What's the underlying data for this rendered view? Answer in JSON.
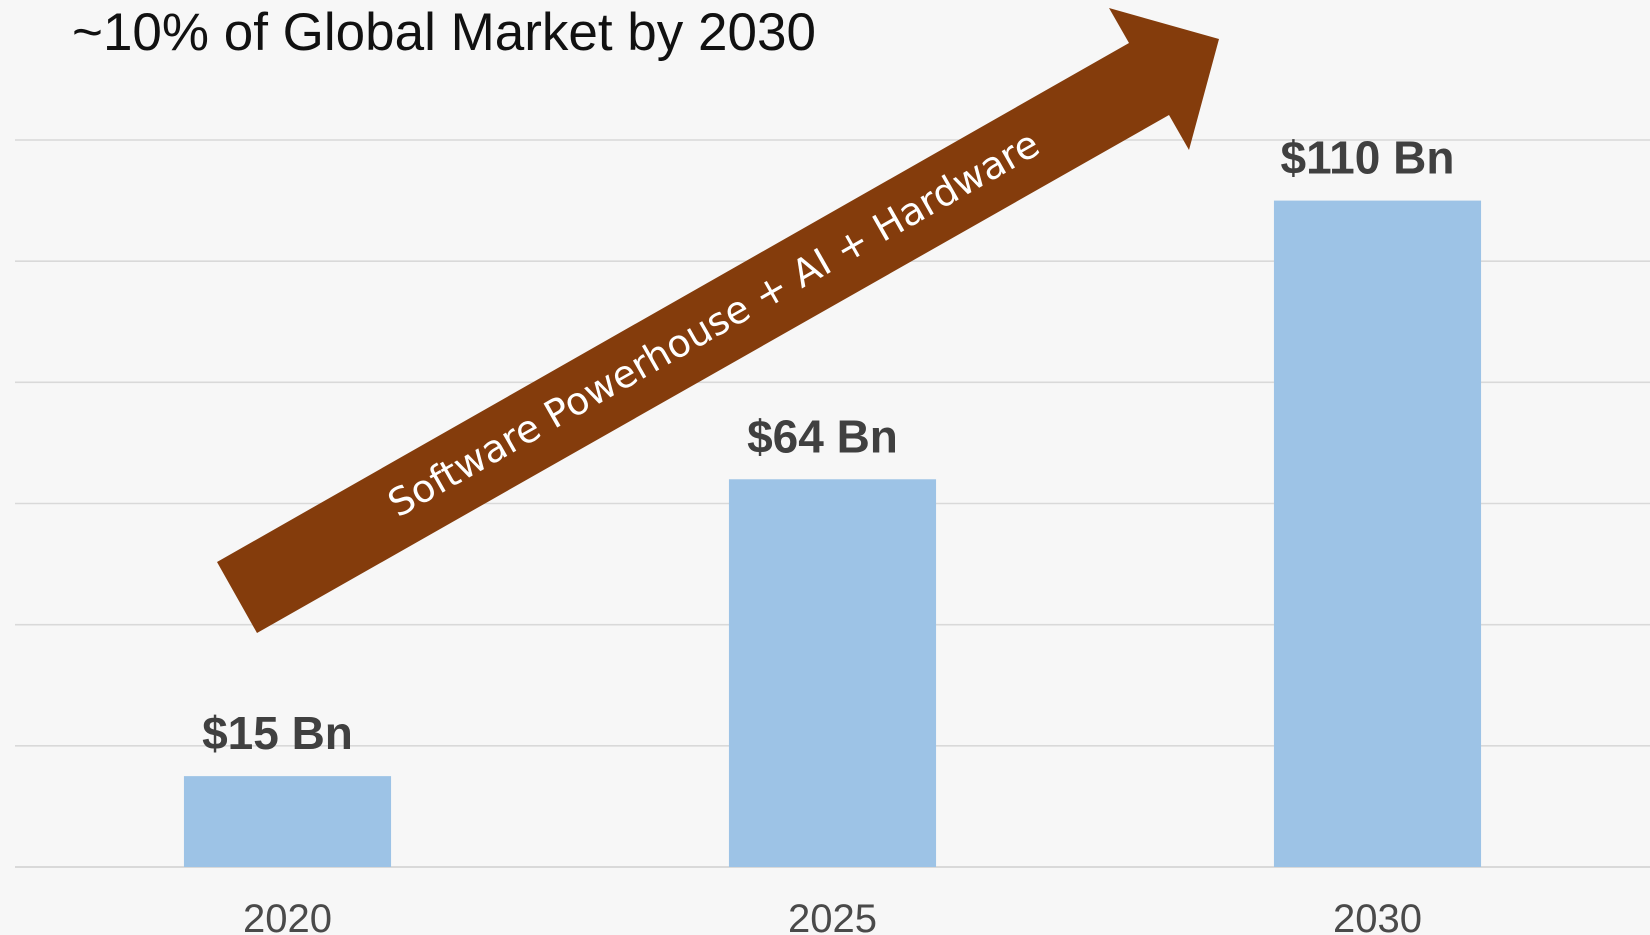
{
  "chart_data": {
    "type": "bar",
    "title": "~10% of Global Market by 2030",
    "categories": [
      "2020",
      "2025",
      "2030"
    ],
    "values": [
      15,
      64,
      110
    ],
    "data_labels": [
      "$15 Bn",
      "$64 Bn",
      "$110 Bn"
    ],
    "xlabel": "",
    "ylabel": "",
    "ylim": [
      0,
      120
    ],
    "grid": true,
    "legend": "none",
    "annotation": "Software Powerhouse + AI + Hardware",
    "colors": {
      "bar": "#9dc3e6",
      "arrow": "#843c0c",
      "gridline": "#d9d9d9",
      "background": "#f7f7f7"
    }
  }
}
